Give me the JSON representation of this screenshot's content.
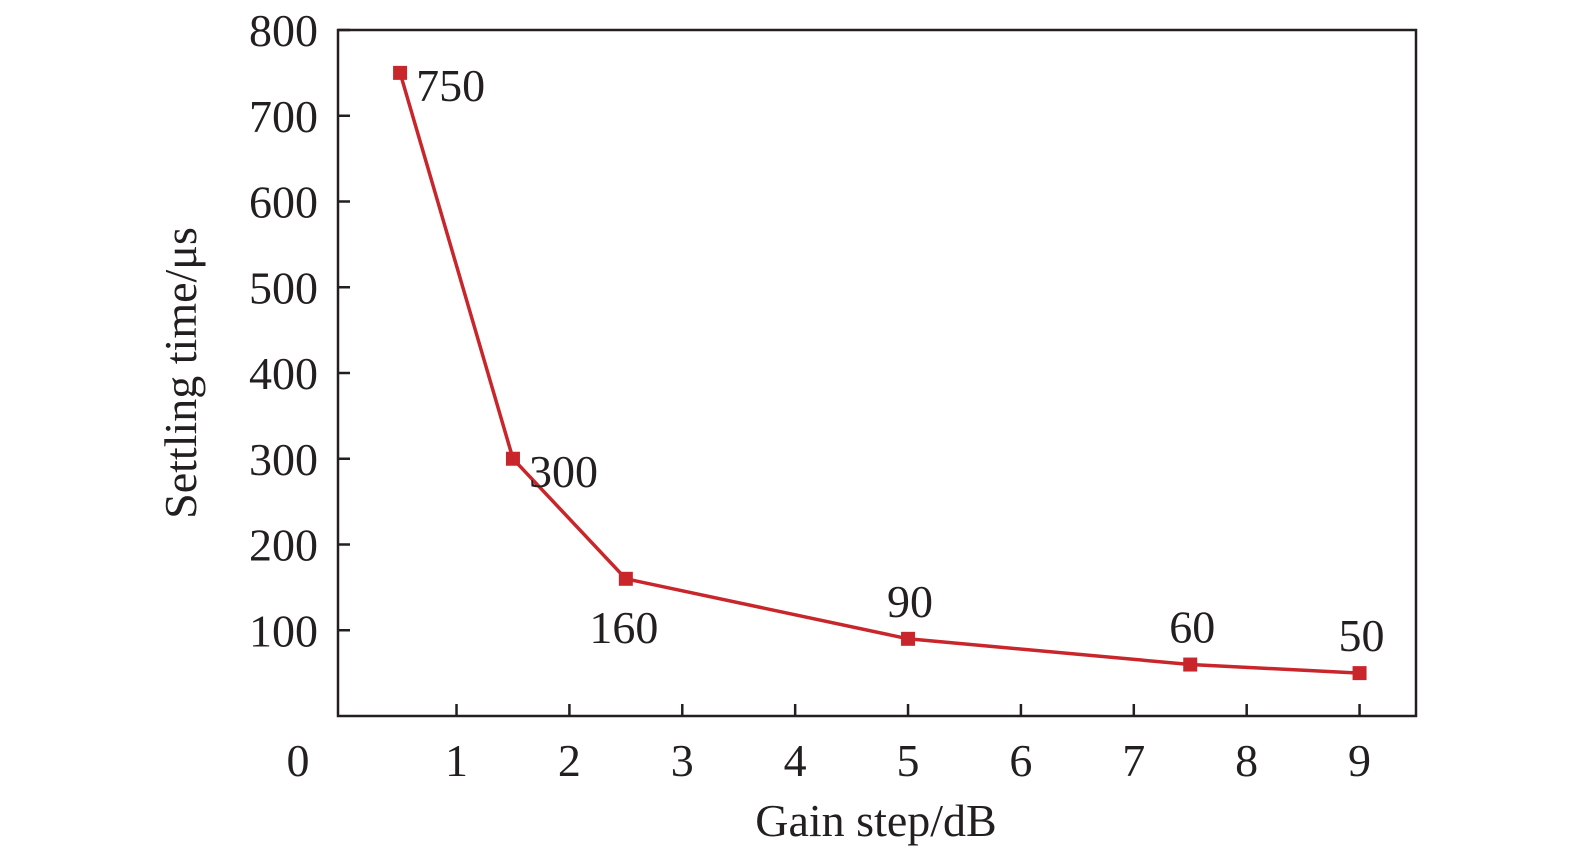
{
  "chart_data": {
    "type": "line",
    "title": "",
    "xlabel": "Gain step/dB",
    "ylabel": "Settling time/μs",
    "xlim": [
      -0.05,
      9.5
    ],
    "ylim": [
      0,
      800
    ],
    "origin_label": "0",
    "x_ticks": [
      1,
      2,
      3,
      4,
      5,
      6,
      7,
      8,
      9
    ],
    "x_tick_labels": [
      "1",
      "2",
      "3",
      "4",
      "5",
      "6",
      "7",
      "8",
      "9"
    ],
    "y_ticks": [
      100,
      200,
      300,
      400,
      500,
      600,
      700,
      800
    ],
    "y_tick_labels": [
      "100",
      "200",
      "300",
      "400",
      "500",
      "600",
      "700",
      "800"
    ],
    "grid": false,
    "legend": "none",
    "series": [
      {
        "color": "#c8262b",
        "marker": "square",
        "points": [
          {
            "x": 0.5,
            "y": 750,
            "label": "750",
            "label_pos": "right"
          },
          {
            "x": 1.5,
            "y": 300,
            "label": "300",
            "label_pos": "right"
          },
          {
            "x": 2.5,
            "y": 160,
            "label": "160",
            "label_pos": "below"
          },
          {
            "x": 5.0,
            "y": 90,
            "label": "90",
            "label_pos": "above"
          },
          {
            "x": 7.5,
            "y": 60,
            "label": "60",
            "label_pos": "above"
          },
          {
            "x": 9.0,
            "y": 50,
            "label": "50",
            "label_pos": "above"
          }
        ]
      }
    ]
  }
}
